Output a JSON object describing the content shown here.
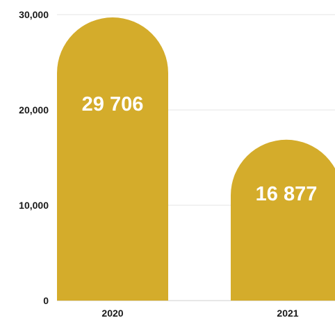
{
  "chart_data": {
    "type": "bar",
    "categories": [
      "2020",
      "2021"
    ],
    "values": [
      29706,
      16877
    ],
    "data_labels": [
      "29 706",
      "16 877"
    ],
    "y_ticks": [
      {
        "value": 0,
        "label": "0"
      },
      {
        "value": 10000,
        "label": "10,000"
      },
      {
        "value": 20000,
        "label": "20,000"
      },
      {
        "value": 30000,
        "label": "30,000"
      }
    ],
    "ylim": [
      0,
      30000
    ],
    "grid": true,
    "bar_color": "#d4ac2b",
    "title": "",
    "xlabel": "",
    "ylabel": ""
  }
}
